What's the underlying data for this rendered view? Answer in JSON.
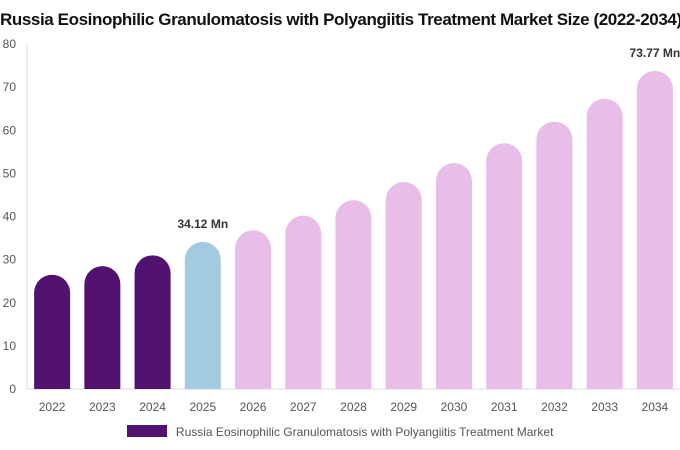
{
  "chart_data": {
    "type": "bar",
    "title": "Russia Eosinophilic Granulomatosis with Polyangiitis Treatment Market Size (2022-2034)",
    "categories": [
      "2022",
      "2023",
      "2024",
      "2025",
      "2026",
      "2027",
      "2028",
      "2029",
      "2030",
      "2031",
      "2032",
      "2033",
      "2034"
    ],
    "series": [
      {
        "name": "Russia Eosinophilic Granulomatosis with Polyangiitis Treatment Market",
        "values": [
          26.5,
          28.5,
          31.0,
          34.12,
          36.8,
          40.2,
          43.8,
          48.0,
          52.4,
          57.0,
          62.0,
          67.3,
          73.77
        ]
      }
    ],
    "bar_colors": [
      "#521270",
      "#521270",
      "#521270",
      "#a3cbe0",
      "#e8bde8",
      "#e8bde8",
      "#e8bde8",
      "#e8bde8",
      "#e8bde8",
      "#e8bde8",
      "#e8bde8",
      "#e8bde8",
      "#e8bde8"
    ],
    "legend_color": "#521270",
    "ylim": [
      0,
      80
    ],
    "yticks": [
      0,
      10,
      20,
      30,
      40,
      50,
      60,
      70,
      80
    ],
    "data_labels": [
      {
        "index": 3,
        "text": "34.12 Mn"
      },
      {
        "index": 12,
        "text": "73.77 Mn"
      }
    ],
    "grid": false,
    "legend_position": "bottom"
  }
}
